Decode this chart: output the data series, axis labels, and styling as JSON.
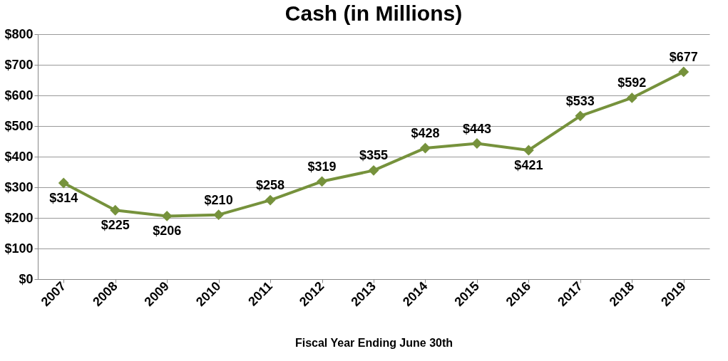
{
  "chart_data": {
    "type": "line",
    "title": "Cash (in Millions)",
    "xlabel": "Fiscal Year Ending June 30th",
    "categories": [
      "2007",
      "2008",
      "2009",
      "2010",
      "2011",
      "2012",
      "2013",
      "2014",
      "2015",
      "2016",
      "2017",
      "2018",
      "2019"
    ],
    "series": [
      {
        "color": "#76923c",
        "values": [
          314,
          225,
          206,
          210,
          258,
          319,
          355,
          428,
          443,
          421,
          533,
          592,
          677
        ],
        "value_labels": [
          "$314",
          "$225",
          "$206",
          "$210",
          "$258",
          "$319",
          "$355",
          "$428",
          "$443",
          "$421",
          "$533",
          "$592",
          "$677"
        ]
      }
    ],
    "ylim": [
      0,
      800
    ],
    "yticks": [
      {
        "value": 0,
        "label": "$0"
      },
      {
        "value": 100,
        "label": "$100"
      },
      {
        "value": 200,
        "label": "$200"
      },
      {
        "value": 300,
        "label": "$300"
      },
      {
        "value": 400,
        "label": "$400"
      },
      {
        "value": 500,
        "label": "$500"
      },
      {
        "value": 600,
        "label": "$600"
      },
      {
        "value": 700,
        "label": "$700"
      },
      {
        "value": 800,
        "label": "$800"
      }
    ],
    "grid": "y",
    "marker": "diamond",
    "line_style": "solid"
  }
}
